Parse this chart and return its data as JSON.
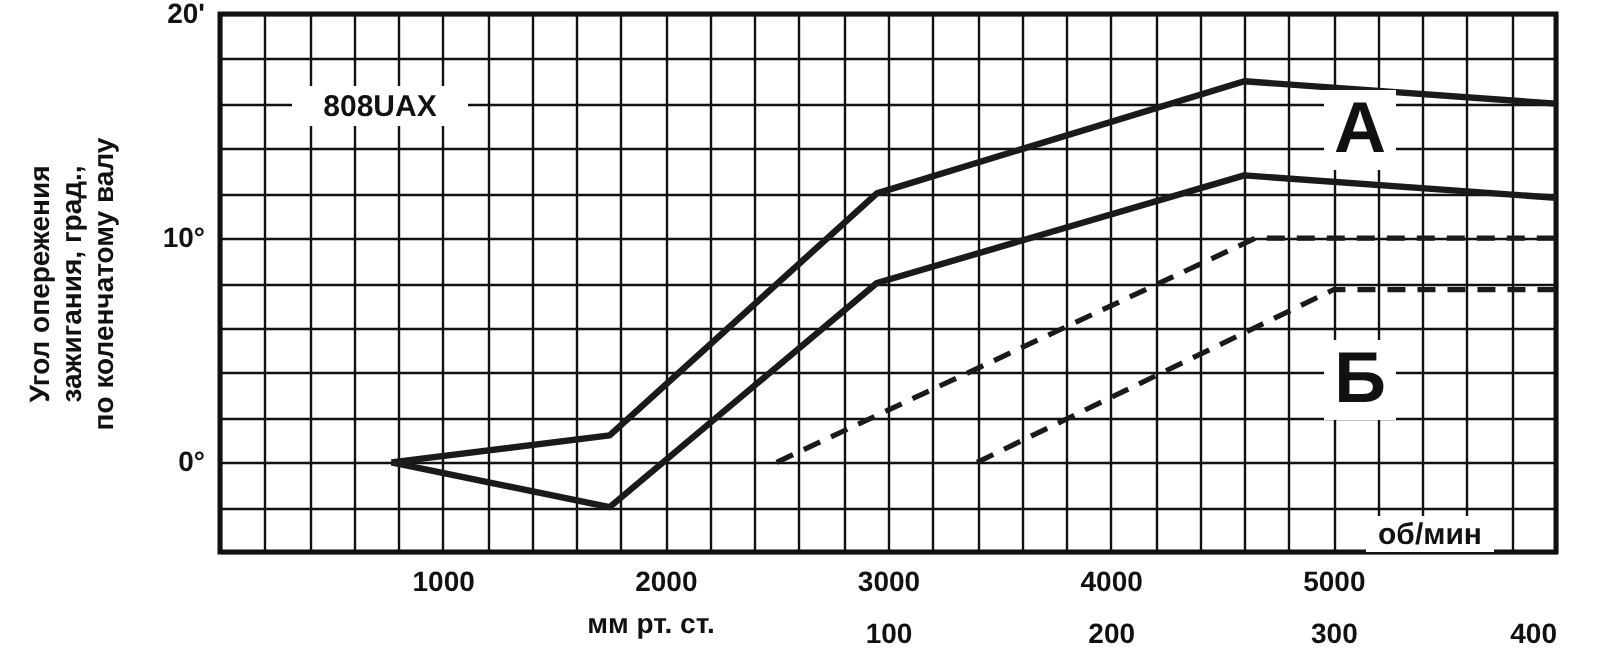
{
  "chart_data": {
    "type": "line",
    "xlabel": "об/мин",
    "x2label": "мм рт. ст.",
    "ylabel": "Угол опережения\nзажигания, град.,\nпо коленчатому валу",
    "xlim": [
      0,
      6000
    ],
    "ylim": [
      -4,
      20
    ],
    "x2lim": [
      -200,
      400
    ],
    "xticks": [
      {
        "value": 0,
        "label": null
      },
      {
        "value": 200,
        "label": null
      },
      {
        "value": 400,
        "label": null
      },
      {
        "value": 600,
        "label": null
      },
      {
        "value": 800,
        "label": null
      },
      1000,
      {
        "value": 1200,
        "label": null
      },
      {
        "value": 1400,
        "label": null
      },
      {
        "value": 1600,
        "label": null
      },
      {
        "value": 1800,
        "label": null
      },
      2000,
      {
        "value": 2200,
        "label": null
      },
      {
        "value": 2400,
        "label": null
      },
      {
        "value": 2600,
        "label": null
      },
      {
        "value": 2800,
        "label": null
      },
      3000,
      {
        "value": 3200,
        "label": null
      },
      {
        "value": 3400,
        "label": null
      },
      {
        "value": 3600,
        "label": null
      },
      {
        "value": 3800,
        "label": null
      },
      4000,
      {
        "value": 4200,
        "label": null
      },
      {
        "value": 4400,
        "label": null
      },
      {
        "value": 4600,
        "label": null
      },
      {
        "value": 4800,
        "label": null
      },
      5000,
      {
        "value": 5200,
        "label": null
      },
      {
        "value": 5400,
        "label": null
      },
      {
        "value": 5600,
        "label": null
      },
      {
        "value": 5800,
        "label": null
      },
      {
        "value": 6000,
        "label": null
      }
    ],
    "x2ticks": [
      100,
      200,
      300,
      400
    ],
    "yticks": [
      {
        "value": -4,
        "label": null
      },
      {
        "value": -2,
        "label": null
      },
      {
        "value": 0,
        "label": "0°"
      },
      {
        "value": 2,
        "label": null
      },
      {
        "value": 4,
        "label": null
      },
      {
        "value": 6,
        "label": null
      },
      {
        "value": 8,
        "label": null
      },
      {
        "value": 10,
        "label": "10°"
      },
      {
        "value": 12,
        "label": null
      },
      {
        "value": 14,
        "label": null
      },
      {
        "value": 16,
        "label": null
      },
      {
        "value": 18,
        "label": null
      },
      {
        "value": 20,
        "label": "20'"
      }
    ],
    "grid": true,
    "series": [
      {
        "color": "#1a1a1a",
        "line_style": "solid",
        "x": [
          770,
          1750,
          2950,
          4600,
          6000
        ],
        "values": [
          0,
          1.2,
          12,
          17,
          16
        ]
      },
      {
        "color": "#1a1a1a",
        "line_style": "solid",
        "x": [
          770,
          1750,
          2950,
          4600,
          6000
        ],
        "values": [
          0,
          -2,
          8,
          12.8,
          11.8
        ]
      },
      {
        "color": "#1a1a1a",
        "line_style": "dashed",
        "axis": "x2",
        "x": [
          50,
          265,
          400
        ],
        "values": [
          0,
          10,
          10
        ]
      },
      {
        "color": "#1a1a1a",
        "line_style": "dashed",
        "axis": "x2",
        "x": [
          140,
          300,
          400
        ],
        "values": [
          0,
          7.7,
          7.7
        ]
      }
    ],
    "annotations": [
      "808UAX",
      "А",
      "Б"
    ]
  }
}
